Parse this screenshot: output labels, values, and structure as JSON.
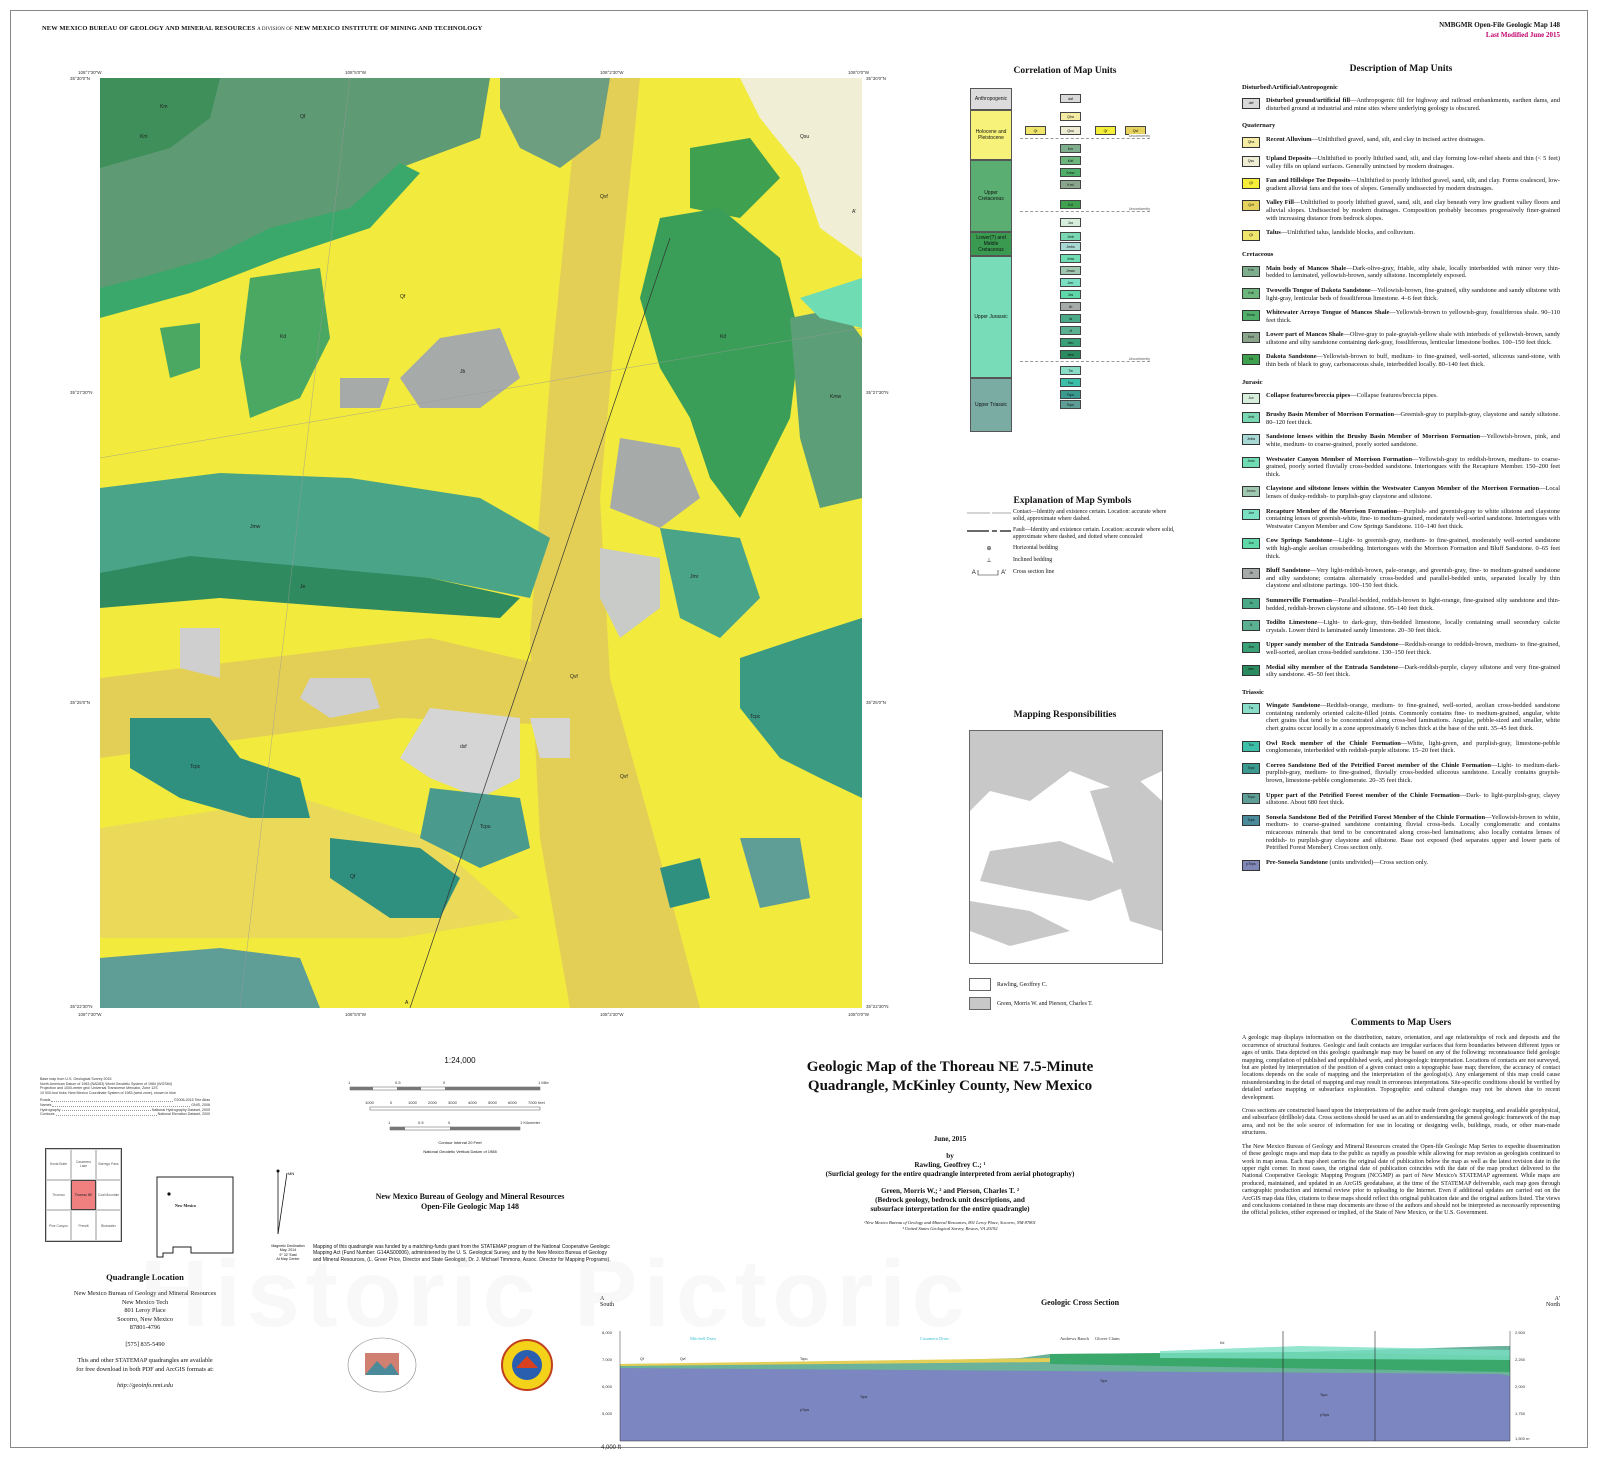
{
  "header": {
    "org": "NEW MEXICO BUREAU OF GEOLOGY AND MINERAL RESOURCES",
    "division": "A DIVISION OF",
    "parent": "NEW MEXICO INSTITUTE OF MINING AND TECHNOLOGY",
    "series": "NMBGMR Open-File Geologic Map 148",
    "modified": "Last Modified June 2015"
  },
  "colors": {
    "modified": "#c0006a",
    "quad_highlight": "#f08080",
    "topo_blue": "#3cc0d8"
  },
  "map": {
    "top_coords": [
      "108°7'30\"W",
      "108°5'0\"W",
      "108°2'30\"W",
      "108°0'0\"W"
    ],
    "side_coords": [
      "35°30'0\"N",
      "35°27'30\"N",
      "35°25'0\"N",
      "35°22'30\"N"
    ],
    "section_ends": [
      "A",
      "A'"
    ],
    "unit_labels": [
      "Km",
      "Qf",
      "Qvf",
      "Kd",
      "Jb",
      "Jmr",
      "Jmw",
      "Tcpc",
      "Tcpu",
      "dsf",
      "Qf",
      "Qvf",
      "Kmw",
      "Je",
      "Qsu",
      "Qf",
      "Tcpc",
      "Km",
      "Kd",
      "Qvf"
    ]
  },
  "correlation": {
    "title": "Correlation of Map Units",
    "ages": [
      "Anthropogenic",
      "Holocene and Pleistocene",
      "Upper Cretaceous",
      "Lower(?) and Middle Cretaceous",
      "Upper Jurassic",
      "Upper Triassic"
    ],
    "age_colors": [
      "#dcdcdc",
      "#f7f27a",
      "#5aae72",
      "#3a9a50",
      "#78dcb8",
      "#7aaca4"
    ],
    "unconformity": "Unconformity"
  },
  "symbols": {
    "title": "Explanation of Map Symbols",
    "items": [
      {
        "label": "Contact—Identity and existence certain. Location: accurate where solid, approximate where dashed."
      },
      {
        "label": "Fault—Identity and existence certain. Location: accurate where solid, approximate where dashed, and dotted where concealed"
      },
      {
        "label": "Horizontal bedding"
      },
      {
        "label": "Inclined bedding"
      },
      {
        "label": "Cross section line",
        "ends": [
          "A",
          "A'"
        ]
      }
    ]
  },
  "responsibilities": {
    "title": "Mapping Responsibilities",
    "items": [
      {
        "label": "Rawling, Geoffrey C.",
        "color": "#ffffff"
      },
      {
        "label": "Green, Morris W. and Pierson, Charles T.",
        "color": "#c8c8c8"
      }
    ]
  },
  "description": {
    "title": "Description of Map Units",
    "sections": [
      {
        "name": "Disturbed\\Artificial\\Antropogenic",
        "units": [
          {
            "code": "daf",
            "color": "#d9d9d9",
            "name": "Disturbed ground/artificial fill",
            "text": "—Anthropogenic fill for highway and railroad embankments, earthen dams, and disturbed ground at industrial and mine sites where underlying geology is obscured."
          }
        ]
      },
      {
        "name": "Quaternary",
        "units": [
          {
            "code": "Qha",
            "color": "#f4eca2",
            "name": "Recent Alluvium",
            "text": "—Unlithified gravel, sand, silt, and clay in incised active drainages."
          },
          {
            "code": "Qsu",
            "color": "#eeecd2",
            "name": "Upland Deposits",
            "text": "—Unlithified to poorly lithified sand, silt, and clay forming low-relief sheets and thin (< 5 feet) valley fills on upland surfaces. Generally unincised by modern drainages."
          },
          {
            "code": "Qf",
            "color": "#f5ef3a",
            "name": "Fan and Hillslope Toe Deposits",
            "text": "—Unlithified to poorly lithified gravel, sand, silt, and clay. Forms coalesced, low-gradient alluvial fans and the toes of slopes. Generally undissected by modern drainages."
          },
          {
            "code": "Qvf",
            "color": "#e6d25c",
            "name": "Valley Fill",
            "text": "—Unlithified to poorly lithified gravel, sand, silt, and clay beneath very low gradient valley floors and alluvial slopes. Undissected by modern drainages. Composition probably becomes progressively finer-grained with increasing distance from bedrock slopes."
          },
          {
            "code": "Qt",
            "color": "#f0e66c",
            "name": "Talus",
            "text": "—Unlithified talus, landslide blocks, and colluvium."
          }
        ]
      },
      {
        "name": "Cretaceous",
        "units": [
          {
            "code": "Km",
            "color": "#7fae8f",
            "name": "Main body of Mancos Shale",
            "text": "—Dark-olive-gray, friable, silty shale, locally interbedded with minor very thin-bedded to laminated, yellowish-brown, sandy siltstone. Incompletely exposed."
          },
          {
            "code": "Kdt",
            "color": "#6cb67e",
            "name": "Twowells Tongue of Dakota Sandstone",
            "text": "—Yellowish-brown, fine-grained, silty sandstone and sandy siltstone with light-gray, lenticular beds of fossiliferous limestone. 4–6 feet thick."
          },
          {
            "code": "Kmw",
            "color": "#4fae6a",
            "name": "Whitewater Arroyo Tongue of Mancos Shale",
            "text": "—Yellowish-brown to yellowish-gray, fossiliferous shale. 90–110 feet thick."
          },
          {
            "code": "Kml",
            "color": "#8aa58c",
            "name": "Lower part of Mancos Shale",
            "text": "—Olive-gray to pale-grayish-yellow shale with interbeds of yellowish-brown, sandy siltstone and silty sandstone containing dark-gray, fossiliferous, lenticular limestone bodies. 100–150 feet thick."
          },
          {
            "code": "Kd",
            "color": "#3fa04f",
            "name": "Dakota Sandstone",
            "text": "—Yellowish-brown to buff, medium- to fine-grained, well-sorted, siliceous sand-stone, with thin beds of black to gray, carbonaceous shale, interbedded locally. 80–140 feet thick."
          }
        ]
      },
      {
        "name": "Jurasic",
        "units": [
          {
            "code": "Jcx",
            "color": "#d8eedc",
            "name": "Collapse features/breccia pipes",
            "text": "—Collapse features/breccia pipes."
          },
          {
            "code": "Jmb",
            "color": "#78d8b4",
            "name": "Brushy Basin Member of Morrison Formation",
            "text": "—Greenish-gray to purplish-gray, claystone and sandy siltstone. 80–120 feet thick."
          },
          {
            "code": "Jmbs",
            "color": "#a8d8d4",
            "name": "Sandstone lenses within the Brushy Basin Member of Morrison Formation",
            "text": "—Yellowish-brown, pink, and white, medium- to coarse-grained, poorly sorted sandstone."
          },
          {
            "code": "Jmw",
            "color": "#6fdcb4",
            "name": "Westwater Canyon Member of Morrison Formation",
            "text": "—Yellowish-gray to reddish-brown, medium- to coarse-grained, poorly sorted fluvially cross-bedded sandstone. Intertongues with the Recapture Member. 150–200 feet thick."
          },
          {
            "code": "Jmwc",
            "color": "#a0c8b0",
            "name": "Claystone and siltstone lenses within the Westwater Canyon Member of the Morrison Formation",
            "text": "—Local lenses of dusky-reddish- to purplish-gray claystone and siltstone."
          },
          {
            "code": "Jmr",
            "color": "#7ae0c4",
            "name": "Recapture Member of the Morrison Formation",
            "text": "—Purplish- and greenish-gray to white siltstone and claystone containing lenses of greenish-white, fine- to medium-grained, moderately well-sorted sandstone. Intertongues with Westwater Canyon Member and Cow Springs Sandstone. 110–140 feet thick."
          },
          {
            "code": "Jcs",
            "color": "#5ed8a8",
            "name": "Cow Springs Sandstone",
            "text": "—Light- to greenish-gray, medium- to fine-grained, moderately well-sorted sandstone with high-angle aeolian crossbedding. Intertongues with the Morrison Formation and Bluff Sandstone. 0–65 feet thick."
          },
          {
            "code": "Jb",
            "color": "#a6aaa8",
            "name": "Bluff Sandstone",
            "text": "—Very light-reddish-brown, pale-orange, and greenish-gray, fine- to medium-grained sandstone and silty sandstone; contains alternately cross-bedded and parallel-bedded units, separated locally by thin claystone and siltstone partings. 100–150 feet thick."
          },
          {
            "code": "Js",
            "color": "#4aaa88",
            "name": "Summerville Formation",
            "text": "—Parallel-bedded, reddish-brown to light-orange, fine-grained silty sandstone and thin-bedded, reddish-brown claystone and siltstone. 95–140 feet thick."
          },
          {
            "code": "Jt",
            "color": "#5cb092",
            "name": "Todilto Limestone",
            "text": "—Light- to dark-gray, thin-bedded limestone, locally containing small secondary calcite crystals. Lower third is laminated sandy limestone. 20–30 feet thick."
          },
          {
            "code": "Jeu",
            "color": "#3aa078",
            "name": "Upper sandy member of the Entrada Sandstone",
            "text": "—Reddish-orange to reddish-brown, medium- to fine-grained, well-sorted, aeolian cross-bedded sandstone. 130–150 feet thick."
          },
          {
            "code": "Jem",
            "color": "#2a8a60",
            "name": "Medial silty member of the Entrada Sandstone",
            "text": "—Dark-reddish-purple, clayey siltstone and very fine-grained silty sandstone. 45–50 feet thick."
          }
        ]
      },
      {
        "name": "Triassic",
        "units": [
          {
            "code": "Tw",
            "color": "#88dcc8",
            "name": "Wingate Sandstone",
            "text": "—Reddish-orange, medium- to fine-grained, well-sorted, aeolian cross-bedded sandstone containing randomly oriented calcite-filled joints. Commonly contains fine- to medium-grained, angular, white chert grains that tend to be concentrated along cross-bed laminations. Angular, pebble-sized and smaller, white chert grains occur locally in a zone approximately 6 inches thick at the base of the unit. 35–45 feet thick."
          },
          {
            "code": "Tco",
            "color": "#3cbfa8",
            "name": "Owl Rock member of the Chinle Formation",
            "text": "—White, light-green, and purplish-gray, limestone-pebble conglomerate, interbedded with reddish-purple siltstone. 15–20 feet thick."
          },
          {
            "code": "Tcpc",
            "color": "#3a9a90",
            "name": "Correo Sandstone Bed of the Petrified Forest member of the Chinle Formation",
            "text": "—Light- to medium-dark-purplish-gray, medium- to fine-grained, fluvially cross-bedded siliceous sandstone. Locally contains grayish-brown, limestone-pebble conglomerate. 20–35 feet thick."
          },
          {
            "code": "Tcpu",
            "color": "#5e9e96",
            "name": "Upper part of the Petrified Forest member of the Chinle Formation",
            "text": "—Dark- to light-purplish-gray, clayey siltstone. About 680 feet thick."
          },
          {
            "code": "Tcps",
            "color": "#4a8a9a",
            "name": "Sonsela Sandstone Bed of the Petrified Forest Member of the Chinle Formation",
            "text": "—Yellowish-brown to white, medium- to coarse-grained sandstone containing fluvial cross-beds. Locally conglomeratic and contains micaceous minerals that tend to be concentrated along cross-bed laminations; also locally contains lenses of reddish- to purplish-gray claystone and siltstone. Base not exposed (bed separates upper and lower parts of Petrified Forest Member). Cross section only."
          },
          {
            "code": "pTcps",
            "color": "#8088b8",
            "name": "Pre-Sonsela Sandstone",
            "text": " (units undivided)—Cross section only."
          }
        ]
      }
    ]
  },
  "comments": {
    "title": "Comments to Map Users",
    "paragraphs": [
      "A geologic map displays information on the distribution, nature, orientation, and age relationships of rock and deposits and the occurrence of structural features. Geologic and fault contacts are irregular surfaces that form boundaries between different types or ages of units. Data depicted on this geologic quadrangle map may be based on any of the following: reconnaissance field geologic mapping, compilation of published and unpublished work, and photogeologic interpretation. Locations of contacts are not surveyed, but are plotted by interpretation of the position of a given contact onto a topographic base map; therefore, the accuracy of contact locations depends on the scale of mapping and the interpretation of the geologist(s). Any enlargement of this map could cause misunderstanding in the detail of mapping and may result in erroneous interpretations. Site-specific conditions should be verified by detailed surface mapping or subsurface exploration. Topographic and cultural changes may not be shown due to recent development.",
      "Cross sections are constructed based upon the interpretations of the author made from geologic mapping, and available geophysical, and subsurface (drillhole) data. Cross sections should be used as an aid to understanding the general geologic framework of the map area, and not be the sole source of information for use in locating or designing wells, buildings, roads, or other man-made structures.",
      "The New Mexico Bureau of Geology and Mineral Resources created the Open-file Geologic Map Series to expedite dissemination of these geologic maps and map data to the public as rapidly as possible while allowing for map revision as geologists continued to work in map areas. Each map sheet carries the original date of publication below the map as well as the latest revision date in the upper right corner. In most cases, the original date of publication coincides with the date of the map product delivered to the National Cooperative Geologic Mapping Program (NCGMP) as part of New Mexico's STATEMAP agreement. While maps are produced, maintained, and updated in an ArcGIS geodatabase, at the time of the STATEMAP deliverable, each map goes through cartographic production and internal review prior to uploading to the Internet. Even if additional updates are carried out on the ArcGIS map data files, citations to these maps should reflect this original publication date and the original authors listed. The views and conclusions contained in these map documents are those of the authors and should not be interpreted as necessarily representing the official policies, either expressed or implied, of the State of New Mexico, or the U.S. Government."
    ]
  },
  "title": {
    "line1": "Geologic Map of the Thoreau NE 7.5-Minute",
    "line2": "Quadrangle, McKinley County, New Mexico",
    "date": "June, 2015",
    "by": "by",
    "author1": "Rawling, Geoffrey C.; ¹",
    "author1_role": "(Surficial geology for the entire quadrangle interpreted from aerial photography)",
    "author2": "Green, Morris W.; ² and Pierson, Charles T. ²",
    "author2_role1": "(Bedrock geology, bedrock unit descriptions, and",
    "author2_role2": "subsurface interpretation for the entire quadrangle)",
    "fn1": "¹New Mexico Bureau of Geology and Mineral Resources, 801 Leroy Place, Socorro, NM 87801",
    "fn2": "² United States Geological Survey, Reston, VA 20192"
  },
  "openfile": {
    "line1": "New Mexico Bureau of Geology and Mineral Resources",
    "line2": "Open-File Geologic Map 148",
    "funding": "Mapping of this quadrangle was funded by a matching-funds grant from the STATEMAP program of the National Cooperative Geologic Mapping Act (Fund Number: G14AS00006), administered by the U. S. Geological Survey, and by the New Mexico Bureau of Geology and Mineral Resources, (L. Greer Price, Director and State Geologist, Dr. J. Michael Timmons, Assoc. Director for Mapping Programs)."
  },
  "base_map": {
    "lines": [
      "Base map from U.S. Geological Survey 2015",
      "North American Datum of 1983 (NAD83) World Geodetic System of 1984 (WGS84)",
      "Projection and 1000-meter grid: Universal Transverse Mercator, Zone 12S",
      "10 000-foot ticks: New Mexico Coordinate System of 1983 (west zone), shown in blue"
    ],
    "sources": [
      {
        "k": "Roads",
        "v": "©2006-2015 Tele Atlas"
      },
      {
        "k": "Names",
        "v": "GNIS, 2008"
      },
      {
        "k": "Hydrography",
        "v": "National Hydrography Dataset, 2005"
      },
      {
        "k": "Contours",
        "v": "National Elevation Dataset, 2000"
      }
    ]
  },
  "scale": {
    "ratio": "1:24,000",
    "miles": [
      "1",
      "0.5",
      "0",
      "1 Mile"
    ],
    "feet": [
      "1000",
      "0",
      "1000",
      "2000",
      "3000",
      "4000",
      "5000",
      "6000",
      "7000 feet"
    ],
    "km": [
      "1",
      "0.5",
      "0",
      "1 Kilometer"
    ],
    "contour": "Contour Interval 20 Feet",
    "datum": "National Geodetic Vertical Datum of 1988"
  },
  "declination": {
    "mn": "MN",
    "text": [
      "Magnetic Declination",
      "May, 2014",
      "9° 32' East",
      "At Map Center"
    ]
  },
  "location": {
    "title": "Quadrangle Location",
    "state": "New Mexico",
    "quads": [
      "Hosta Butte",
      "Casamero Lake",
      "Borrego Pass",
      "Thoreau",
      "Thoreau NE",
      "Coal Mountain",
      "Pine Canyon",
      "Prewitt",
      "Bluewater"
    ]
  },
  "address": {
    "lines": [
      "New Mexico Bureau of Geology and Mineral Resources",
      "New Mexico Tech",
      "801 Leroy Place",
      "Socorro, New Mexico",
      "87801-4796"
    ],
    "phone": "[575] 835-5490",
    "avail1": "This and other STATEMAP quadrangles are available",
    "avail2": "for free download in both PDF and ArcGIS formats at:",
    "url": "http://geoinfo.nmt.edu"
  },
  "logos": {
    "nmbgmr": "New Mexico Bureau of Geology & Mineral Resources",
    "statemap": "NEW MEXICO STATEMAP"
  },
  "cross_section": {
    "title": "Geologic Cross Section",
    "left_end": "A",
    "left_dir": "South",
    "right_end": "A'",
    "right_dir": "North",
    "left_axis": [
      "8,000",
      "7,000",
      "6,000",
      "5,000",
      "4,000 ft"
    ],
    "right_axis": [
      "2,500",
      "2,250",
      "2,000",
      "1,750",
      "1,500 m"
    ],
    "places": [
      "Mitchell Draw",
      "Casamero Draw",
      "Andrews Ranch",
      "Glover Claim"
    ],
    "units": [
      "Qf",
      "Qvf",
      "Tcpu",
      "Tcps",
      "pTcps",
      "Tcpc",
      "Kd",
      "Tcpu",
      "pTcps"
    ]
  },
  "watermark": "Historic Pictoric"
}
